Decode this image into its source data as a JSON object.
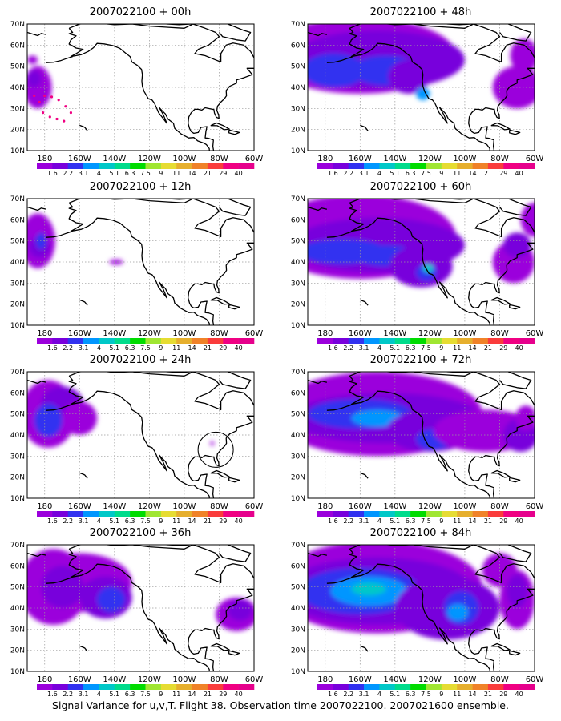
{
  "panels": [
    {
      "title": "2007022100 + 00h"
    },
    {
      "title": "2007022100 + 48h"
    },
    {
      "title": "2007022100 + 12h"
    },
    {
      "title": "2007022100 + 60h"
    },
    {
      "title": "2007022100 + 24h"
    },
    {
      "title": "2007022100 + 72h"
    },
    {
      "title": "2007022100 + 36h"
    },
    {
      "title": "2007022100 + 84h"
    }
  ],
  "lat_labels": [
    "70N",
    "60N",
    "50N",
    "40N",
    "30N",
    "20N",
    "10N"
  ],
  "lon_labels": [
    "180",
    "160W",
    "140W",
    "120W",
    "100W",
    "80W",
    "60W"
  ],
  "colorbar": {
    "labels": [
      "1.6",
      "2.2",
      "3.1",
      "4",
      "5.1",
      "6.3",
      "7.5",
      "9",
      "11",
      "14",
      "21",
      "29",
      "40"
    ],
    "colors": [
      "#9b00dc",
      "#7800dc",
      "#3232f0",
      "#0096ff",
      "#00c8c8",
      "#00dc8c",
      "#00dc00",
      "#a0e632",
      "#e6dc32",
      "#e6af2d",
      "#f08228",
      "#fa3c3c",
      "#f00082",
      "#e6008c"
    ]
  },
  "footer": "Signal Variance for u,v,T. Flight 38. Observation time 2007022100. 2007021600 ensemble."
}
